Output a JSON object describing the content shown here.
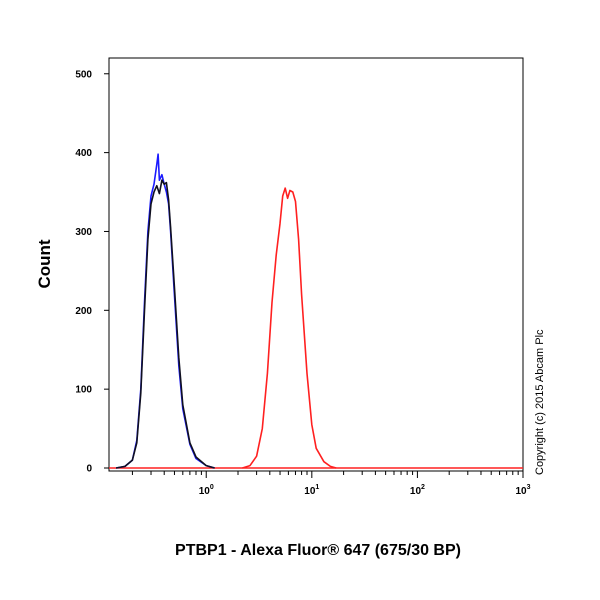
{
  "chart_data": {
    "type": "line",
    "xlabel": "PTBP1 - Alexa Fluor® 647 (675/30 BP)",
    "ylabel": "Count",
    "x_scale": "log",
    "xlim": [
      0.12,
      1000
    ],
    "ylim": [
      0,
      520
    ],
    "y_ticks": [
      "0",
      "100",
      "200",
      "300",
      "400",
      "500"
    ],
    "x_ticks": [
      {
        "base": "10",
        "exp": "0",
        "value": 1
      },
      {
        "base": "10",
        "exp": "1",
        "value": 10
      },
      {
        "base": "10",
        "exp": "2",
        "value": 100
      },
      {
        "base": "10",
        "exp": "3",
        "value": 1000
      }
    ],
    "grid": false,
    "legend": "none",
    "series": [
      {
        "color": "#1a1aff",
        "points": [
          [
            0.14,
            0
          ],
          [
            0.17,
            2
          ],
          [
            0.2,
            10
          ],
          [
            0.22,
            35
          ],
          [
            0.24,
            100
          ],
          [
            0.26,
            210
          ],
          [
            0.28,
            300
          ],
          [
            0.3,
            345
          ],
          [
            0.32,
            360
          ],
          [
            0.34,
            385
          ],
          [
            0.35,
            398
          ],
          [
            0.36,
            365
          ],
          [
            0.38,
            372
          ],
          [
            0.4,
            360
          ],
          [
            0.42,
            350
          ],
          [
            0.44,
            335
          ],
          [
            0.46,
            300
          ],
          [
            0.5,
            220
          ],
          [
            0.55,
            130
          ],
          [
            0.6,
            75
          ],
          [
            0.7,
            30
          ],
          [
            0.8,
            12
          ],
          [
            1.0,
            3
          ],
          [
            1.2,
            0
          ]
        ]
      },
      {
        "color": "#101020",
        "points": [
          [
            0.14,
            0
          ],
          [
            0.17,
            2
          ],
          [
            0.2,
            10
          ],
          [
            0.22,
            32
          ],
          [
            0.24,
            95
          ],
          [
            0.26,
            200
          ],
          [
            0.28,
            290
          ],
          [
            0.3,
            335
          ],
          [
            0.32,
            350
          ],
          [
            0.34,
            358
          ],
          [
            0.36,
            348
          ],
          [
            0.38,
            365
          ],
          [
            0.4,
            360
          ],
          [
            0.42,
            362
          ],
          [
            0.44,
            340
          ],
          [
            0.46,
            305
          ],
          [
            0.5,
            230
          ],
          [
            0.55,
            140
          ],
          [
            0.6,
            80
          ],
          [
            0.7,
            32
          ],
          [
            0.8,
            14
          ],
          [
            1.0,
            3
          ],
          [
            1.2,
            0
          ]
        ]
      },
      {
        "color": "#ff2020",
        "points": [
          [
            2.2,
            0
          ],
          [
            2.6,
            3
          ],
          [
            3.0,
            15
          ],
          [
            3.4,
            50
          ],
          [
            3.8,
            120
          ],
          [
            4.2,
            210
          ],
          [
            4.6,
            270
          ],
          [
            5.0,
            310
          ],
          [
            5.3,
            345
          ],
          [
            5.6,
            355
          ],
          [
            5.9,
            342
          ],
          [
            6.2,
            352
          ],
          [
            6.6,
            350
          ],
          [
            7.0,
            338
          ],
          [
            7.5,
            290
          ],
          [
            8.0,
            220
          ],
          [
            9.0,
            120
          ],
          [
            10,
            55
          ],
          [
            11,
            25
          ],
          [
            13,
            8
          ],
          [
            15,
            2
          ],
          [
            17,
            0
          ]
        ]
      }
    ]
  },
  "copyright": "Copyright (c) 2015 Abcam Plc"
}
